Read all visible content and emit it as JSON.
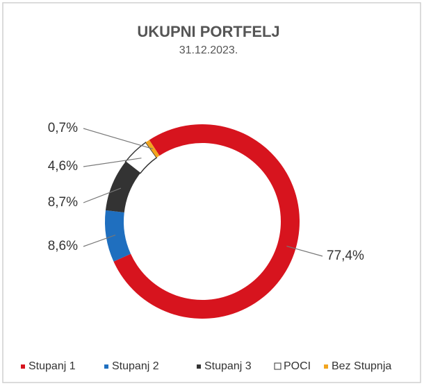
{
  "chart_data": {
    "type": "donut",
    "title": "UKUPNI PORTFELJ",
    "subtitle": "31.12.2023.",
    "categories": [
      "Stupanj 1",
      "Stupanj 2",
      "Stupanj 3",
      "POCI",
      "Bez Stupnja"
    ],
    "values": [
      77.4,
      8.6,
      8.7,
      4.6,
      0.7
    ],
    "value_labels": [
      "77,4%",
      "8,6%",
      "8,7%",
      "4,6%",
      "0,7%"
    ],
    "colors": [
      "#d7141e",
      "#1f6fbf",
      "#333333",
      "#ffffff",
      "#f2a51f"
    ],
    "legend": "bottom"
  }
}
